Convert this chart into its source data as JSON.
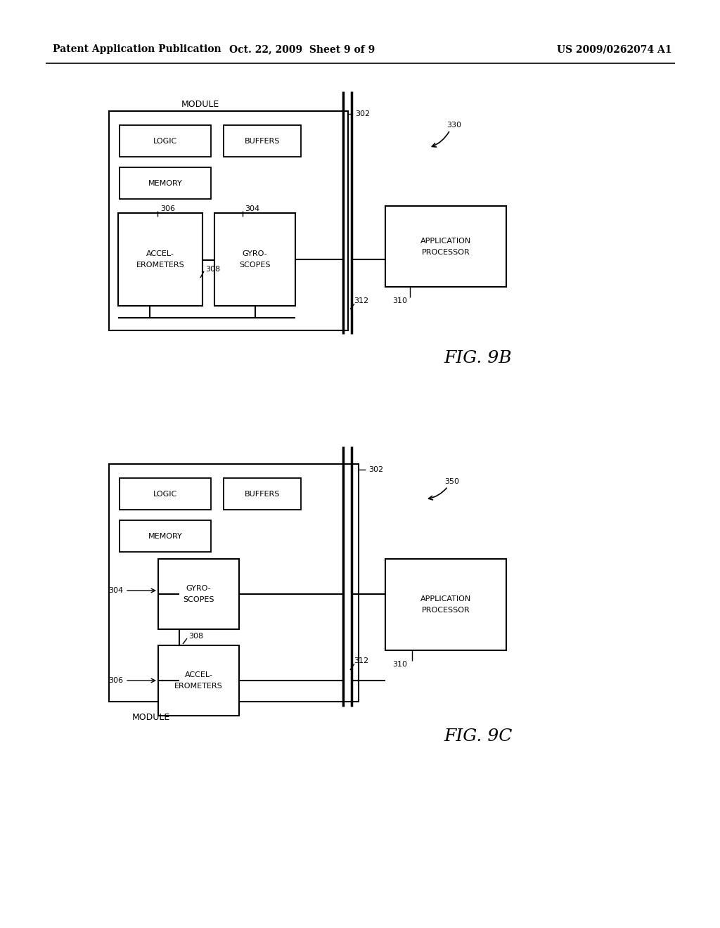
{
  "background_color": "#ffffff",
  "header_left": "Patent Application Publication",
  "header_mid": "Oct. 22, 2009  Sheet 9 of 9",
  "header_right": "US 2009/0262074 A1",
  "fig9b_label": "FIG. 9B",
  "fig9c_label": "FIG. 9C",
  "module_label": "MODULE"
}
